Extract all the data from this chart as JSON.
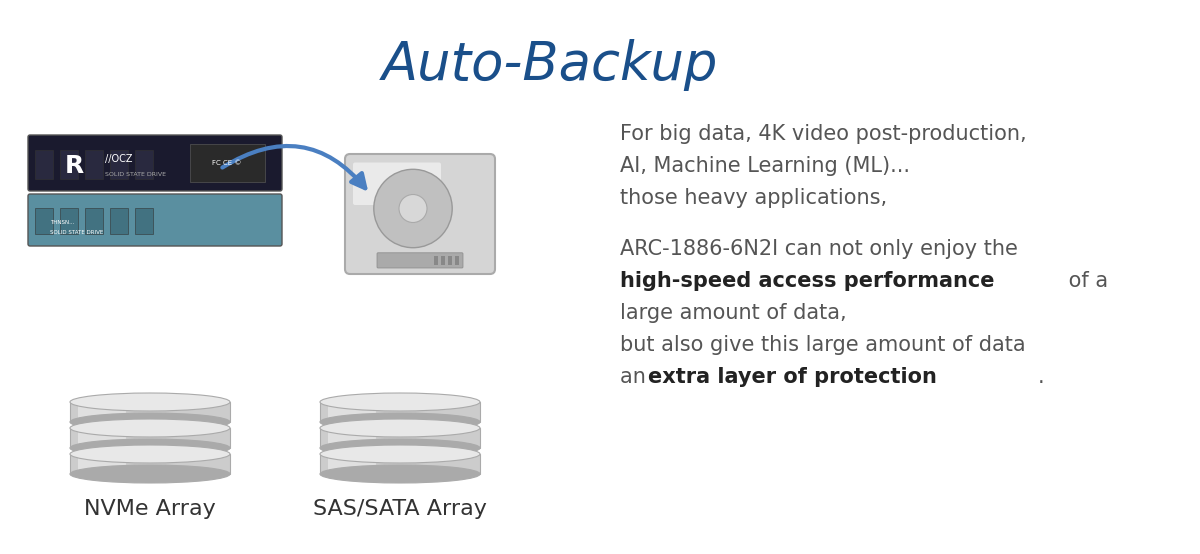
{
  "title": "Auto-Backup",
  "title_color": "#1a4f8a",
  "title_fontsize": 38,
  "bg_color": "#ffffff",
  "text_block": [
    {
      "text": "For big data, 4K video post-production,",
      "bold": false,
      "fontsize": 15,
      "color": "#555555"
    },
    {
      "text": "AI, Machine Learning (ML)...",
      "bold": false,
      "fontsize": 15,
      "color": "#555555"
    },
    {
      "text": "those heavy applications,",
      "bold": false,
      "fontsize": 15,
      "color": "#555555"
    },
    {
      "text": "",
      "bold": false,
      "fontsize": 15,
      "color": "#555555"
    },
    {
      "text": "ARC-1886-6N2I can not only enjoy the",
      "bold": false,
      "fontsize": 15,
      "color": "#555555"
    },
    {
      "text_parts": [
        {
          "text": "high-speed access performance",
          "bold": true
        },
        {
          "text": " of a",
          "bold": false
        }
      ],
      "fontsize": 15,
      "color": "#555555"
    },
    {
      "text": "large amount of data,",
      "bold": false,
      "fontsize": 15,
      "color": "#555555"
    },
    {
      "text": "but also give this large amount of data",
      "bold": false,
      "fontsize": 15,
      "color": "#555555"
    },
    {
      "text_parts": [
        {
          "text": "an ",
          "bold": false
        },
        {
          "text": "extra layer of protection",
          "bold": true
        },
        {
          "text": ".",
          "bold": false
        }
      ],
      "fontsize": 15,
      "color": "#555555"
    }
  ],
  "label_nvme": "NVMe Array",
  "label_sas": "SAS/SATA Array",
  "label_fontsize": 16,
  "label_color": "#333333",
  "arrow_color": "#4a7fc1",
  "disk_color_top": "#e8e8e8",
  "disk_color_mid": "#d0d0d0",
  "disk_color_dark": "#b0b0b0",
  "hdd_color": "#d8d8d8"
}
